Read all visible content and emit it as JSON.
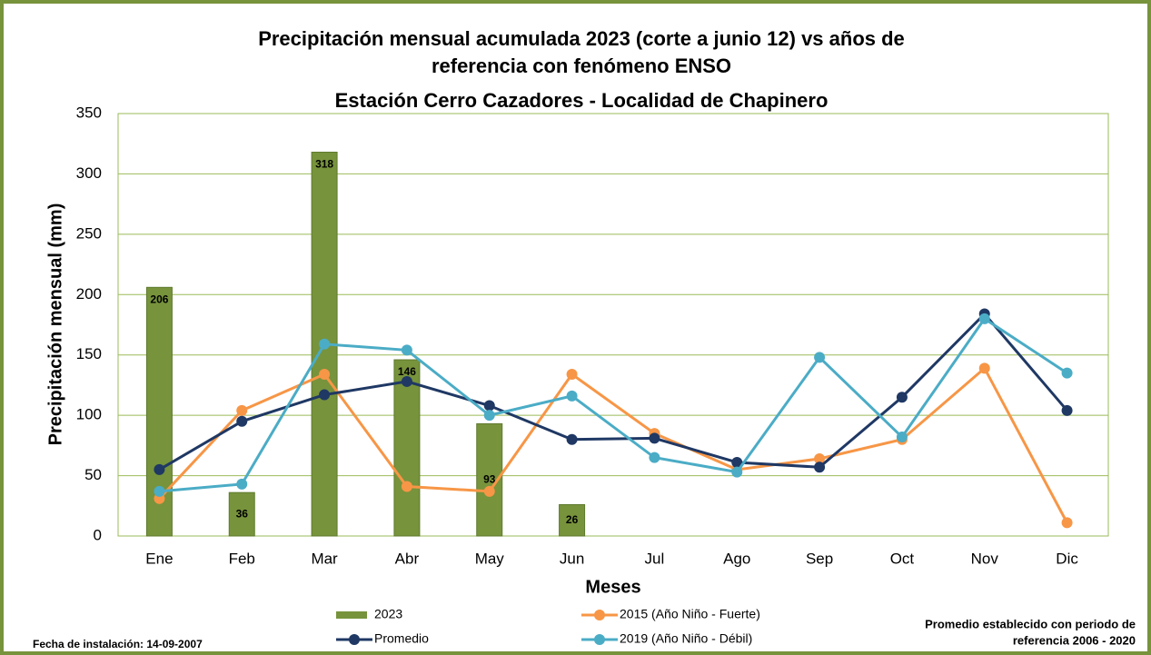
{
  "chart_data": {
    "type": "bar",
    "title": [
      "Precipitación mensual acumulada 2023 (corte a junio 12) vs años de",
      "referencia con fenómeno ENSO"
    ],
    "subtitle": "Estación Cerro Cazadores - Localidad de Chapinero",
    "y_label": "Precipitación mensual (mm)",
    "x_label": "Meses",
    "categories": [
      "Ene",
      "Feb",
      "Mar",
      "Abr",
      "May",
      "Jun",
      "Jul",
      "Ago",
      "Sep",
      "Oct",
      "Nov",
      "Dic"
    ],
    "series": [
      {
        "name": "2023",
        "type": "bar",
        "color": "#77933c",
        "values": [
          206,
          36,
          318,
          146,
          93,
          26,
          null,
          null,
          null,
          null,
          null,
          null
        ]
      },
      {
        "name": "2015 (Año Niño - Fuerte)",
        "type": "line",
        "color": "#f79646",
        "values": [
          31,
          104,
          134,
          41,
          37,
          134,
          85,
          55,
          64,
          80,
          139,
          11
        ]
      },
      {
        "name": "Promedio",
        "type": "line",
        "color": "#1f3864",
        "values": [
          55,
          95,
          117,
          128,
          108,
          80,
          81,
          61,
          57,
          115,
          184,
          104
        ]
      },
      {
        "name": "2019 (Año Niño - Débil)",
        "type": "line",
        "color": "#4bacc6",
        "values": [
          37,
          43,
          159,
          154,
          100,
          116,
          65,
          53,
          148,
          82,
          180,
          135
        ]
      }
    ],
    "ylim": [
      0,
      350
    ],
    "yticks": [
      0,
      50,
      100,
      150,
      200,
      250,
      300,
      350
    ],
    "grid": true,
    "notes": {
      "installation": "Fecha de instalación:  14-09-2007",
      "reference": [
        "Promedio establecido con periodo de",
        "referencia 2006 - 2020"
      ]
    }
  }
}
